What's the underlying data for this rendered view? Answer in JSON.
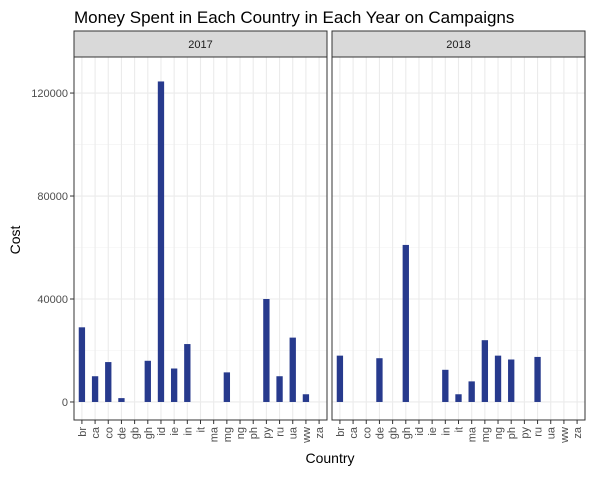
{
  "chart_data": {
    "type": "bar",
    "title": "Money Spent in Each Country in Each Year on Campaigns",
    "xlabel": "Country",
    "ylabel": "Cost",
    "ylim": [
      -7000,
      134000
    ],
    "yticks": [
      0,
      40000,
      80000,
      120000
    ],
    "ytick_labels": [
      "0",
      "40000",
      "80000",
      "120000"
    ],
    "grid": true,
    "bar_color": "#273a8d",
    "strip_color": "#d9d9d9",
    "categories": [
      "br",
      "ca",
      "co",
      "de",
      "gb",
      "gh",
      "id",
      "ie",
      "in",
      "it",
      "ma",
      "mg",
      "ng",
      "ph",
      "py",
      "ru",
      "ua",
      "ww",
      "za"
    ],
    "facets": [
      {
        "label": "2017",
        "values": [
          29000,
          10000,
          15500,
          1500,
          0,
          16000,
          124500,
          13000,
          22500,
          0,
          0,
          11500,
          0,
          0,
          40000,
          10000,
          25000,
          3000,
          0
        ]
      },
      {
        "label": "2018",
        "values": [
          18000,
          0,
          0,
          17000,
          0,
          61000,
          0,
          0,
          12500,
          3000,
          8000,
          24000,
          18000,
          16500,
          0,
          17500,
          0,
          0,
          0
        ]
      }
    ]
  }
}
